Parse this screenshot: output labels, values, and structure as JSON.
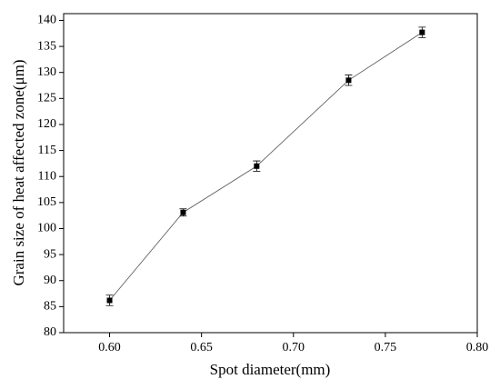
{
  "chart_data": {
    "type": "line",
    "xlabel": "Spot diameter(mm)",
    "ylabel": "Grain size of heat affected zone(μm)",
    "series": [
      {
        "x": [
          0.6,
          0.64,
          0.68,
          0.73,
          0.77
        ],
        "values": [
          86.2,
          103.1,
          112.0,
          128.5,
          137.7
        ],
        "errors": [
          1.0,
          0.7,
          1.0,
          1.0,
          1.0
        ],
        "color": "#000000"
      }
    ],
    "xlim": [
      0.575,
      0.8
    ],
    "xticks": [
      {
        "value": 0.6,
        "label": "0.60"
      },
      {
        "value": 0.65,
        "label": "0.65"
      },
      {
        "value": 0.7,
        "label": "0.70"
      },
      {
        "value": 0.75,
        "label": "0.75"
      },
      {
        "value": 0.8,
        "label": "0.80"
      }
    ],
    "ylim": [
      80,
      141.3
    ],
    "yticks": [
      80,
      85,
      90,
      95,
      100,
      105,
      110,
      115,
      120,
      125,
      130,
      135,
      140
    ]
  }
}
